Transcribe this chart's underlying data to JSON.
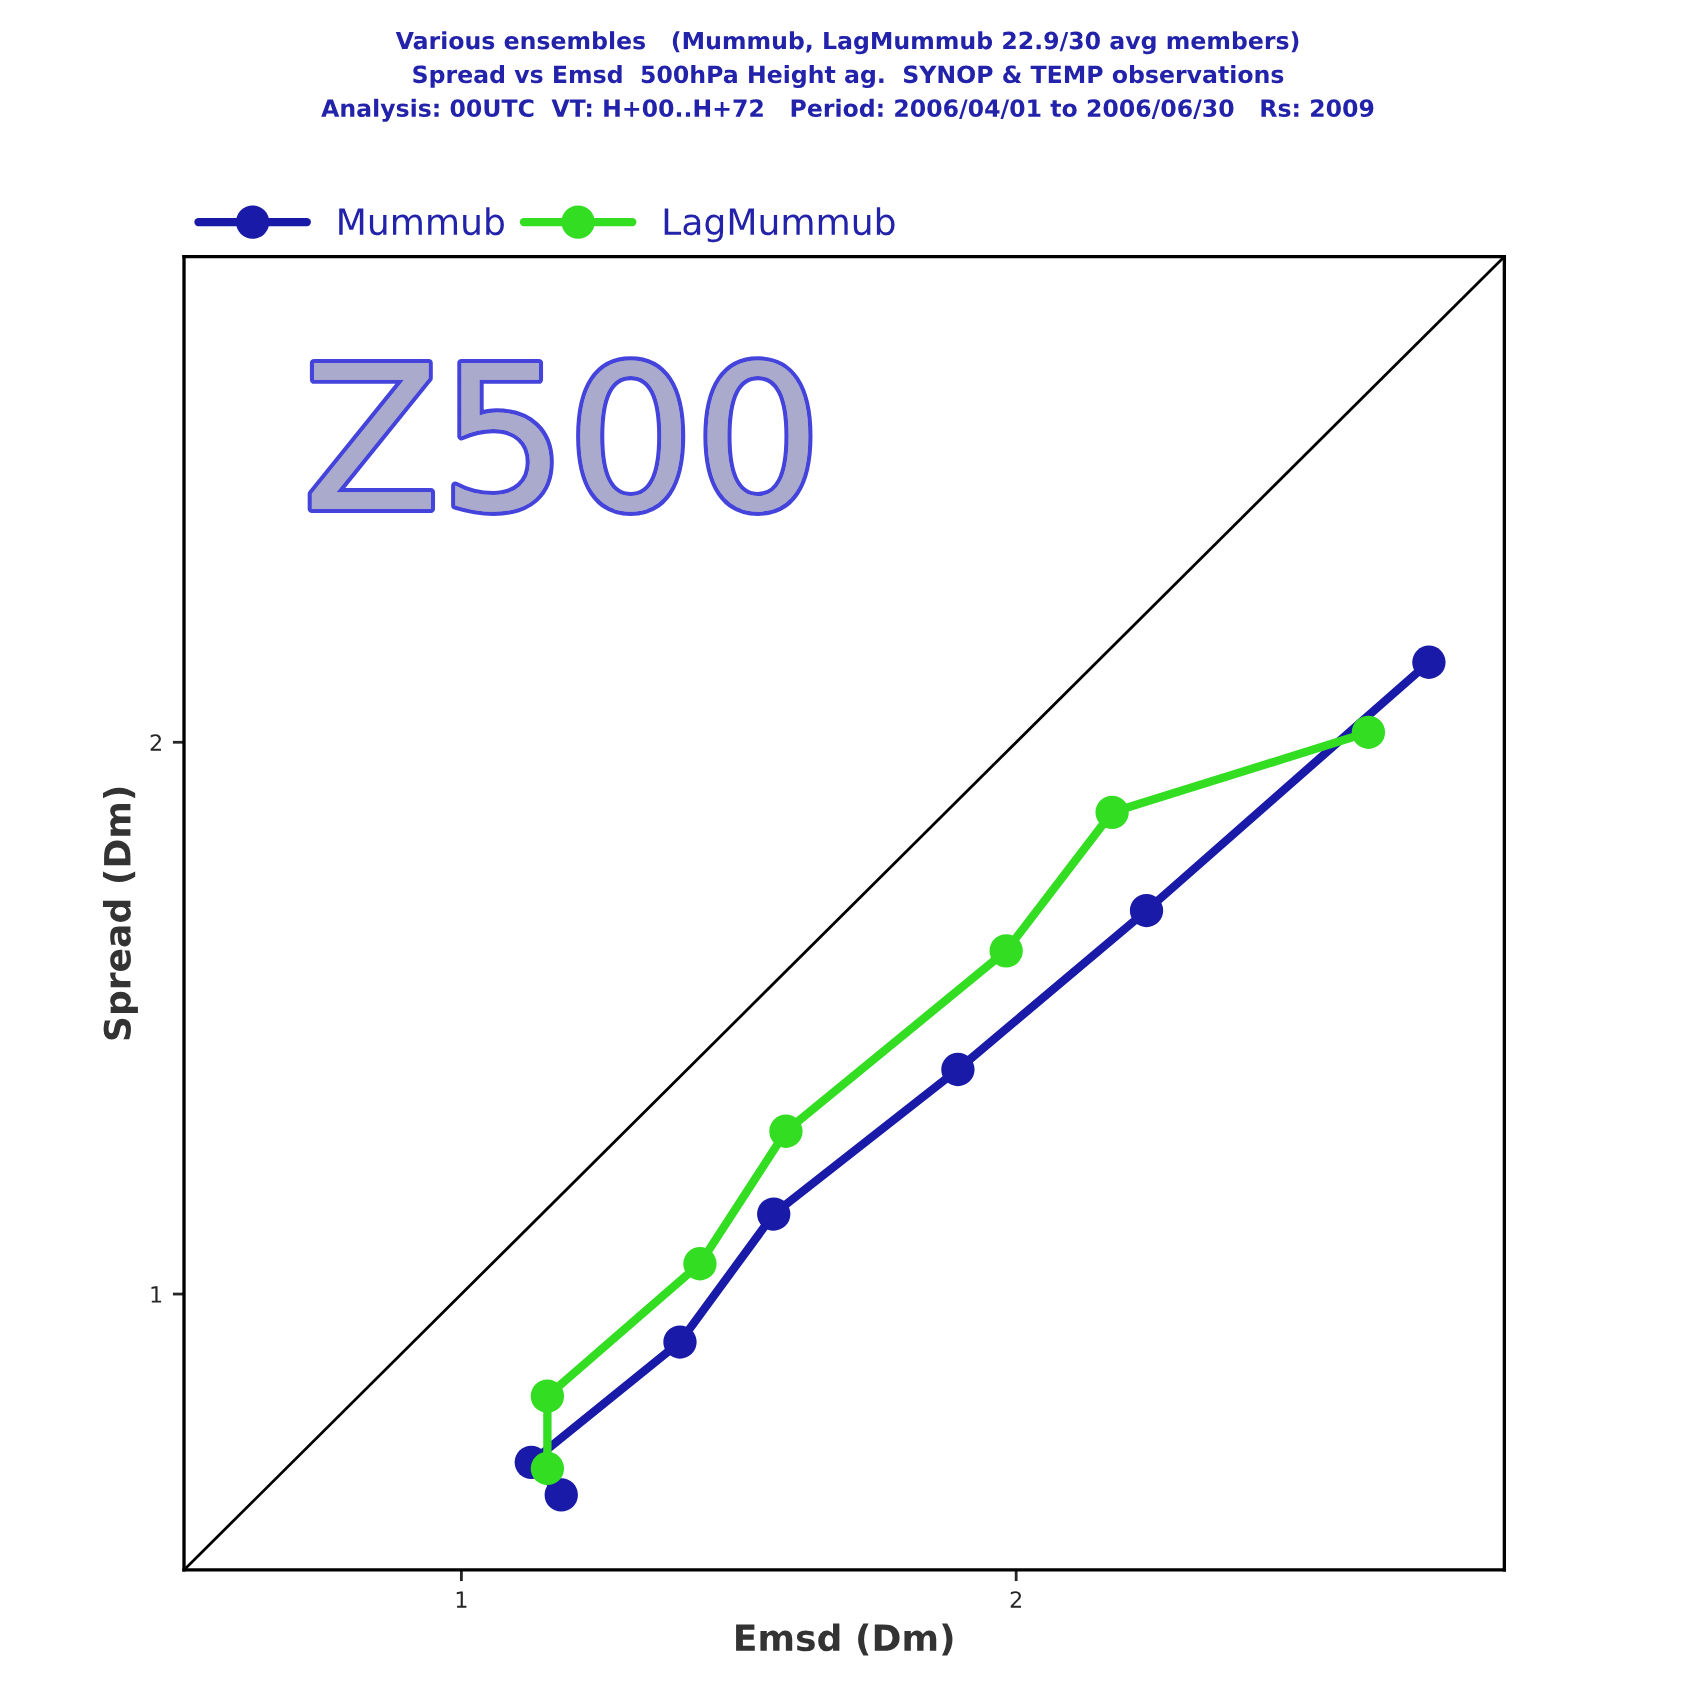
{
  "chart_data": {
    "type": "line",
    "title": "Various ensembles   (Mummub, LagMummub 22.9/30 avg members)\nSpread vs Emsd  500hPa Height ag.  SYNOP & TEMP observations\nAnalysis: 00UTC  VT: H+00..H+72   Period: 2006/04/01 to 2006/06/30   Rs: 2009",
    "xlabel": "Emsd (Dm)",
    "ylabel": "Spread (Dm)",
    "annotations": [
      "Z500"
    ],
    "series": [
      {
        "name": "Mummub",
        "color": "#1a1aa8",
        "x": [
          1.18,
          1.126,
          1.394,
          1.563,
          1.895,
          2.235,
          2.744
        ],
        "values": [
          0.636,
          0.695,
          0.913,
          1.145,
          1.407,
          1.695,
          2.145
        ]
      },
      {
        "name": "LagMummub",
        "color": "#33dd22",
        "x": [
          1.155,
          1.155,
          1.43,
          1.585,
          1.982,
          2.173,
          2.635
        ],
        "values": [
          0.684,
          0.815,
          1.055,
          1.295,
          1.622,
          1.873,
          2.018
        ]
      },
      {
        "color": "#000000",
        "marker": "none",
        "x": [
          0.5,
          2.88
        ],
        "values": [
          0.5,
          2.88
        ]
      }
    ],
    "xlim": [
      0.5,
      2.88
    ],
    "ylim": [
      0.5,
      2.88
    ],
    "xticks": [
      1,
      2
    ],
    "yticks": [
      1,
      2
    ],
    "marker": "circle",
    "line_style": "solid",
    "legend": "top left",
    "grid": false
  }
}
